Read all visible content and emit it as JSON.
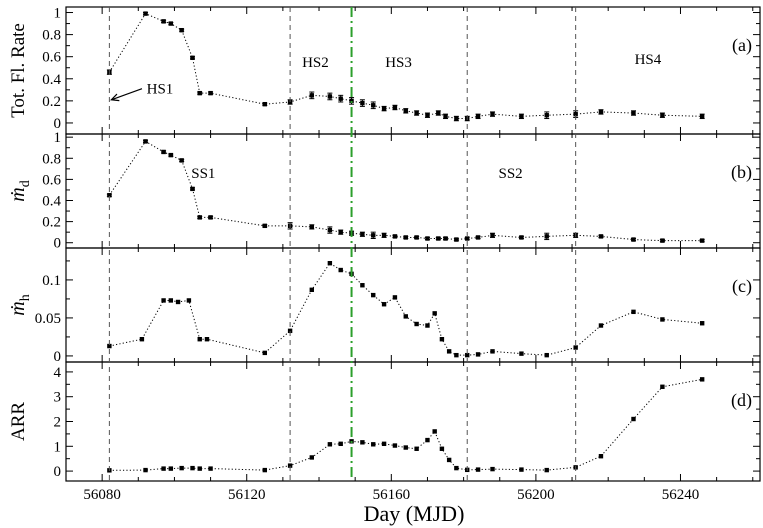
{
  "chart_data": {
    "type": "scatter",
    "xlabel": "Day (MJD)",
    "xlim": [
      56070,
      56262
    ],
    "x_ticks": [
      56080,
      56120,
      56160,
      56200,
      56240
    ],
    "vlines_dashed": [
      56082,
      56132,
      56181,
      56211
    ],
    "vline_dashdot": 56149,
    "colors": {
      "data": "#000000",
      "dashdot": "#2ca02c"
    },
    "panels": [
      {
        "id": "a",
        "panel_label": "(a)",
        "ylabel": "Tot. Fl. Rate",
        "ylim": [
          -0.1,
          1.05
        ],
        "y_ticks": [
          0,
          0.2,
          0.4,
          0.6,
          0.8,
          1
        ],
        "y_tick_labels": [
          "0",
          "0.2",
          "0.4",
          "0.6",
          "0.8",
          "1"
        ],
        "annotations": [
          {
            "text": "HS1",
            "x": 56096,
            "y": 0.31,
            "arrow_to": [
              56082,
              0.21
            ]
          },
          {
            "text": "HS2",
            "x": 56139,
            "y": 0.55
          },
          {
            "text": "HS3",
            "x": 56162,
            "y": 0.55
          },
          {
            "text": "HS4",
            "x": 56231,
            "y": 0.58
          }
        ],
        "x": [
          56082,
          56092,
          56097,
          56099,
          56102,
          56105,
          56107,
          56110,
          56125,
          56132,
          56138,
          56143,
          56146,
          56149,
          56152,
          56155,
          56158,
          56161,
          56164,
          56167,
          56170,
          56173,
          56175,
          56178,
          56181,
          56184,
          56188,
          56196,
          56203,
          56211,
          56218,
          56227,
          56235,
          56246
        ],
        "y": [
          0.46,
          0.99,
          0.92,
          0.9,
          0.84,
          0.59,
          0.27,
          0.27,
          0.17,
          0.19,
          0.25,
          0.24,
          0.22,
          0.2,
          0.18,
          0.16,
          0.13,
          0.14,
          0.11,
          0.09,
          0.07,
          0.09,
          0.06,
          0.04,
          0.04,
          0.06,
          0.08,
          0.06,
          0.07,
          0.08,
          0.1,
          0.09,
          0.07,
          0.06
        ],
        "err": [
          0.02,
          0.01,
          0.01,
          0.01,
          0.01,
          0.01,
          0.01,
          0.01,
          0.01,
          0.02,
          0.03,
          0.03,
          0.03,
          0.03,
          0.03,
          0.03,
          0.02,
          0.02,
          0.02,
          0.02,
          0.02,
          0.02,
          0.02,
          0.02,
          0.02,
          0.02,
          0.02,
          0.02,
          0.03,
          0.03,
          0.02,
          0.02,
          0.02,
          0.02
        ]
      },
      {
        "id": "b",
        "panel_label": "(b)",
        "ylabel": "ṁd",
        "ylim": [
          -0.05,
          1.03
        ],
        "y_ticks": [
          0,
          0.2,
          0.4,
          0.6,
          0.8,
          1
        ],
        "y_tick_labels": [
          "0",
          "0.2",
          "0.4",
          "0.6",
          "0.8",
          "1"
        ],
        "annotations": [
          {
            "text": "SS1",
            "x": 56108,
            "y": 0.66
          },
          {
            "text": "SS2",
            "x": 56193,
            "y": 0.66
          }
        ],
        "x": [
          56082,
          56092,
          56097,
          56099,
          56102,
          56105,
          56107,
          56110,
          56125,
          56132,
          56138,
          56143,
          56146,
          56149,
          56152,
          56155,
          56158,
          56161,
          56164,
          56167,
          56170,
          56173,
          56175,
          56178,
          56181,
          56184,
          56188,
          56196,
          56203,
          56211,
          56218,
          56227,
          56235,
          56246
        ],
        "y": [
          0.45,
          0.96,
          0.86,
          0.83,
          0.78,
          0.51,
          0.24,
          0.24,
          0.16,
          0.16,
          0.15,
          0.12,
          0.1,
          0.09,
          0.08,
          0.07,
          0.07,
          0.06,
          0.05,
          0.05,
          0.04,
          0.04,
          0.04,
          0.03,
          0.04,
          0.05,
          0.07,
          0.05,
          0.06,
          0.07,
          0.06,
          0.03,
          0.02,
          0.02
        ],
        "err": [
          0.01,
          0.01,
          0.01,
          0.01,
          0.01,
          0.01,
          0.01,
          0.01,
          0.01,
          0.03,
          0.02,
          0.03,
          0.02,
          0.02,
          0.02,
          0.03,
          0.02,
          0.01,
          0.01,
          0.01,
          0.01,
          0.01,
          0.01,
          0.01,
          0.01,
          0.01,
          0.02,
          0.01,
          0.03,
          0.02,
          0.01,
          0.01,
          0.01,
          0.01
        ]
      },
      {
        "id": "c",
        "panel_label": "(c)",
        "ylabel": "ṁh",
        "ylim": [
          -0.008,
          0.142
        ],
        "y_ticks": [
          0,
          0.05,
          0.1
        ],
        "y_tick_labels": [
          "0",
          "0.05",
          "0.1"
        ],
        "annotations": [],
        "x": [
          56082,
          56091,
          56097,
          56099,
          56101,
          56104,
          56107,
          56109,
          56125,
          56132,
          56138,
          56143,
          56146,
          56149,
          56152,
          56155,
          56158,
          56161,
          56164,
          56167,
          56170,
          56172,
          56174,
          56176,
          56178,
          56181,
          56184,
          56188,
          56196,
          56203,
          56211,
          56218,
          56227,
          56235,
          56246
        ],
        "y": [
          0.013,
          0.022,
          0.073,
          0.073,
          0.071,
          0.073,
          0.022,
          0.022,
          0.004,
          0.033,
          0.087,
          0.122,
          0.113,
          0.108,
          0.093,
          0.08,
          0.068,
          0.077,
          0.052,
          0.042,
          0.04,
          0.056,
          0.022,
          0.006,
          0.001,
          0.001,
          0.002,
          0.006,
          0.003,
          0.001,
          0.011,
          0.04,
          0.058,
          0.048,
          0.043
        ]
      },
      {
        "id": "d",
        "panel_label": "(d)",
        "ylabel": "ARR",
        "ylim": [
          -0.4,
          4.4
        ],
        "y_ticks": [
          0,
          1,
          2,
          3,
          4
        ],
        "y_tick_labels": [
          "0",
          "1",
          "2",
          "3",
          "4"
        ],
        "annotations": [],
        "x": [
          56082,
          56092,
          56097,
          56099,
          56102,
          56105,
          56107,
          56110,
          56125,
          56132,
          56138,
          56143,
          56146,
          56149,
          56152,
          56155,
          56158,
          56161,
          56164,
          56167,
          56170,
          56172,
          56174,
          56176,
          56178,
          56181,
          56184,
          56188,
          56196,
          56203,
          56211,
          56218,
          56227,
          56235,
          56246
        ],
        "y": [
          0.03,
          0.04,
          0.1,
          0.1,
          0.12,
          0.12,
          0.1,
          0.1,
          0.04,
          0.22,
          0.55,
          1.08,
          1.1,
          1.2,
          1.16,
          1.08,
          1.1,
          1.03,
          0.95,
          0.9,
          1.25,
          1.6,
          0.9,
          0.45,
          0.12,
          0.05,
          0.06,
          0.08,
          0.06,
          0.04,
          0.15,
          0.6,
          2.1,
          3.4,
          3.7
        ]
      }
    ]
  }
}
